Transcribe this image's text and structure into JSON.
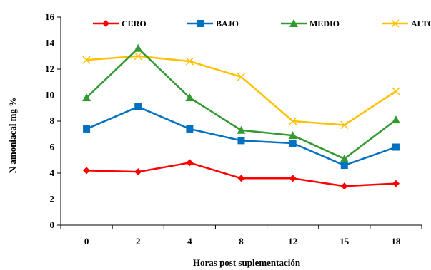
{
  "chart_data": {
    "type": "line",
    "xlabel": "Horas post suplementación",
    "ylabel": "N amoniacal mg %",
    "ylim": [
      0,
      16
    ],
    "yticks": [
      "0",
      "2",
      "4",
      "6",
      "8",
      "10",
      "12",
      "14",
      "16"
    ],
    "categories": [
      "0",
      "2",
      "4",
      "8",
      "12",
      "15",
      "18"
    ],
    "legend_position": "top",
    "grid": false,
    "series": [
      {
        "name": "CERO",
        "color": "#ff0000",
        "marker": "diamond",
        "values": [
          4.2,
          4.1,
          4.8,
          3.6,
          3.6,
          3.0,
          3.2
        ]
      },
      {
        "name": "BAJO",
        "color": "#0070c0",
        "marker": "square",
        "values": [
          7.4,
          9.1,
          7.4,
          6.5,
          6.3,
          4.6,
          6.0
        ]
      },
      {
        "name": "MEDIO",
        "color": "#339933",
        "marker": "triangle",
        "values": [
          9.8,
          13.6,
          9.8,
          7.3,
          6.9,
          5.1,
          8.1
        ]
      },
      {
        "name": "ALTO",
        "color": "#ffc000",
        "marker": "cross",
        "values": [
          12.7,
          13.0,
          12.6,
          11.4,
          8.0,
          7.7,
          10.3
        ]
      }
    ]
  }
}
